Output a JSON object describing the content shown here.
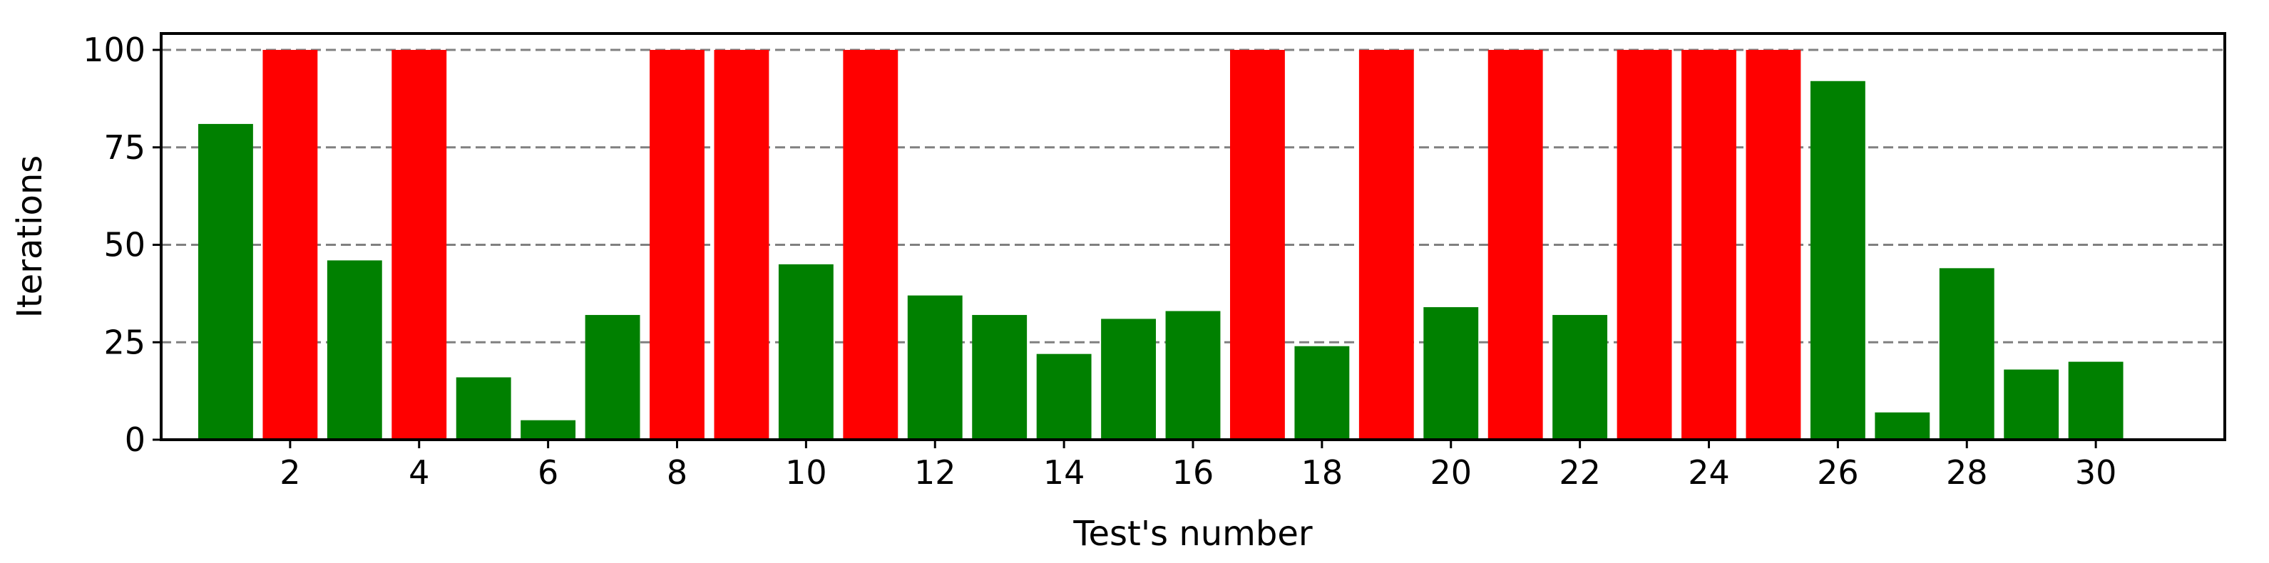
{
  "chart_data": {
    "type": "bar",
    "title": "",
    "xlabel": "Test's number",
    "ylabel": "Iterations",
    "ylim": [
      0,
      100
    ],
    "xlim": [
      0,
      32
    ],
    "yticks": [
      0,
      25,
      50,
      75,
      100
    ],
    "ytick_labels": [
      "0",
      "25",
      "50",
      "75",
      "100"
    ],
    "xticks": [
      2,
      4,
      6,
      8,
      10,
      12,
      14,
      16,
      18,
      20,
      22,
      24,
      26,
      28,
      30
    ],
    "xtick_labels": [
      "2",
      "4",
      "6",
      "8",
      "10",
      "12",
      "14",
      "16",
      "18",
      "20",
      "22",
      "24",
      "26",
      "28",
      "30"
    ],
    "grid": "horizontal dashed",
    "legend": "none",
    "colors": {
      "converged": "#008000",
      "not_converged": "#ff0000",
      "grid": "#808080",
      "axes": "#000000"
    },
    "bars": [
      {
        "x": 1,
        "value": 81,
        "status": "converged"
      },
      {
        "x": 2,
        "value": 100,
        "status": "not_converged"
      },
      {
        "x": 3,
        "value": 46,
        "status": "converged"
      },
      {
        "x": 4,
        "value": 100,
        "status": "not_converged"
      },
      {
        "x": 5,
        "value": 16,
        "status": "converged"
      },
      {
        "x": 6,
        "value": 5,
        "status": "converged"
      },
      {
        "x": 7,
        "value": 32,
        "status": "converged"
      },
      {
        "x": 8,
        "value": 100,
        "status": "not_converged"
      },
      {
        "x": 9,
        "value": 100,
        "status": "not_converged"
      },
      {
        "x": 10,
        "value": 45,
        "status": "converged"
      },
      {
        "x": 11,
        "value": 100,
        "status": "not_converged"
      },
      {
        "x": 12,
        "value": 37,
        "status": "converged"
      },
      {
        "x": 13,
        "value": 32,
        "status": "converged"
      },
      {
        "x": 14,
        "value": 22,
        "status": "converged"
      },
      {
        "x": 15,
        "value": 31,
        "status": "converged"
      },
      {
        "x": 16,
        "value": 33,
        "status": "converged"
      },
      {
        "x": 17,
        "value": 100,
        "status": "not_converged"
      },
      {
        "x": 18,
        "value": 24,
        "status": "converged"
      },
      {
        "x": 19,
        "value": 100,
        "status": "not_converged"
      },
      {
        "x": 20,
        "value": 34,
        "status": "converged"
      },
      {
        "x": 21,
        "value": 100,
        "status": "not_converged"
      },
      {
        "x": 22,
        "value": 32,
        "status": "converged"
      },
      {
        "x": 23,
        "value": 100,
        "status": "not_converged"
      },
      {
        "x": 24,
        "value": 100,
        "status": "not_converged"
      },
      {
        "x": 25,
        "value": 100,
        "status": "not_converged"
      },
      {
        "x": 26,
        "value": 92,
        "status": "converged"
      },
      {
        "x": 27,
        "value": 7,
        "status": "converged"
      },
      {
        "x": 28,
        "value": 44,
        "status": "converged"
      },
      {
        "x": 29,
        "value": 18,
        "status": "converged"
      },
      {
        "x": 30,
        "value": 20,
        "status": "converged"
      }
    ]
  }
}
